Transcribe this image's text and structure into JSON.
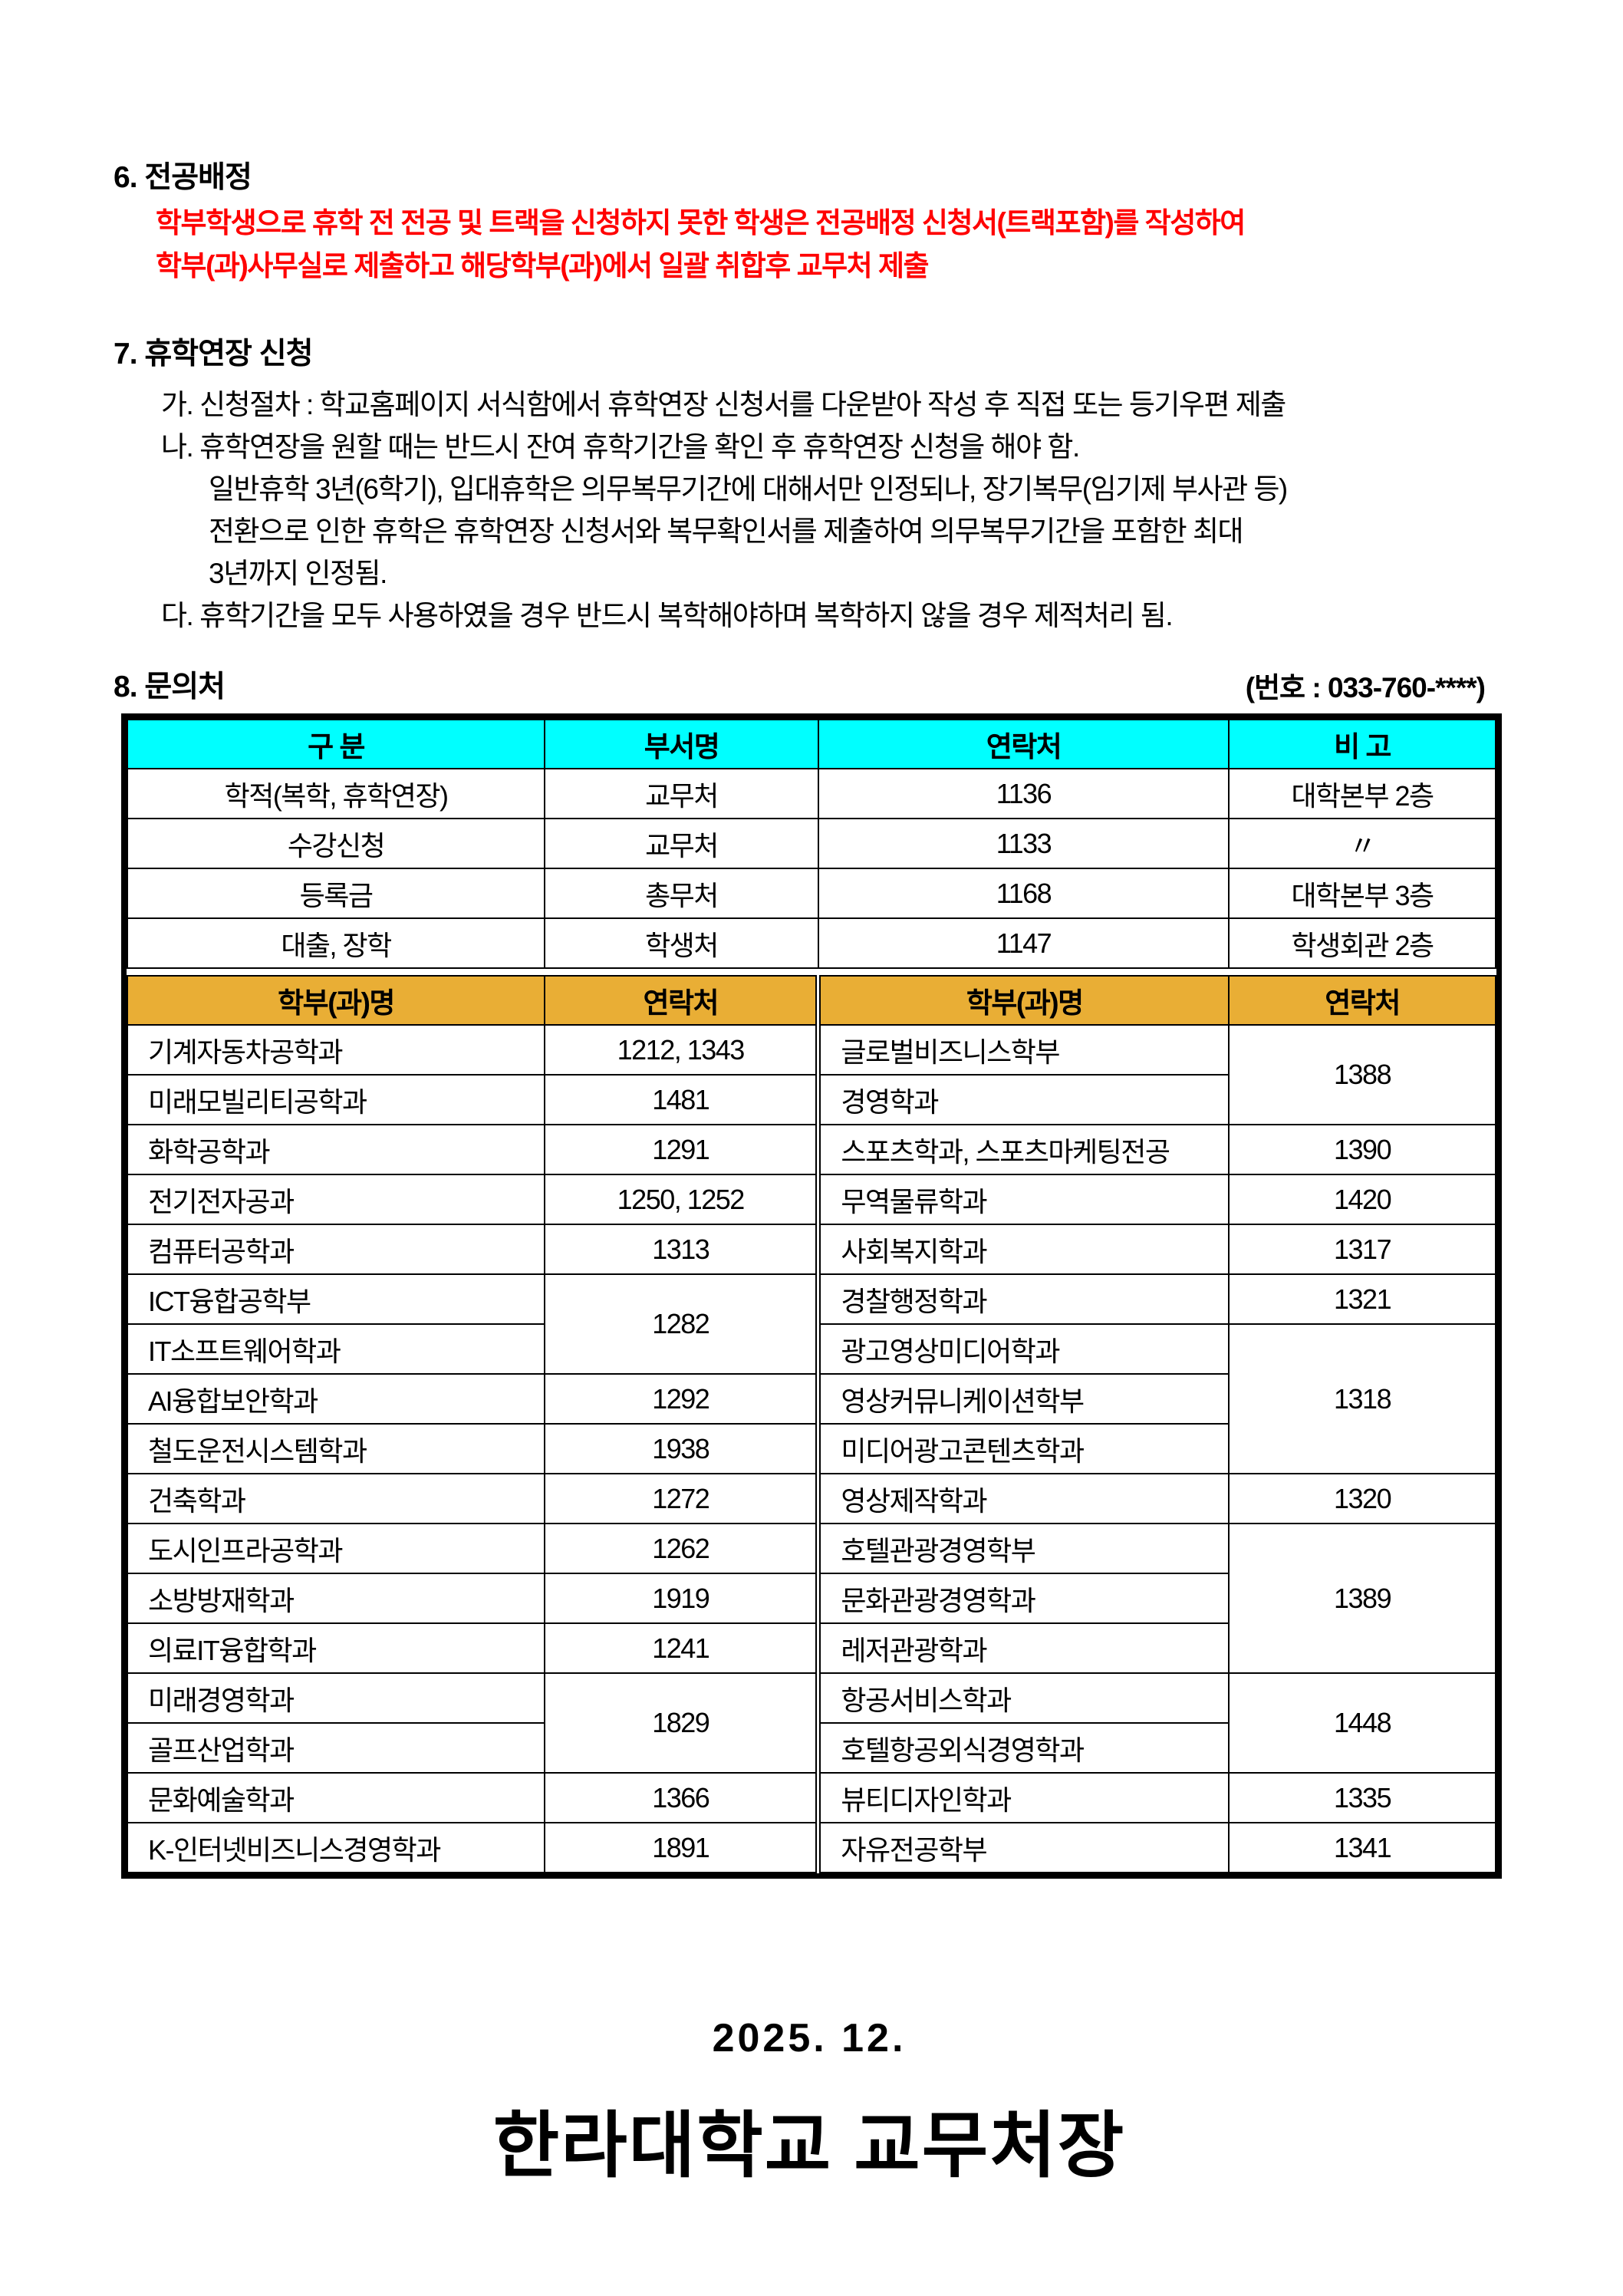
{
  "sections": {
    "major": {
      "heading": "6. 전공배정",
      "lines": [
        "학부학생으로 휴학 전 전공 및 트랙을 신청하지 못한 학생은 전공배정 신청서(트랙포함)를 작성하여",
        "학부(과)사무실로 제출하고 해당학부(과)에서 일괄 취합후 교무처 제출"
      ]
    },
    "extension": {
      "heading": "7. 휴학연장 신청",
      "items": [
        "가. 신청절차 : 학교홈페이지 서식함에서 휴학연장 신청서를 다운받아 작성 후 직접 또는 등기우편 제출",
        "나. 휴학연장을 원할 때는 반드시 잔여 휴학기간을 확인 후 휴학연장 신청을 해야 함.",
        "일반휴학 3년(6학기), 입대휴학은 의무복무기간에 대해서만 인정되나, 장기복무(임기제 부사관 등)",
        "전환으로 인한 휴학은 휴학연장 신청서와 복무확인서를 제출하여 의무복무기간을 포함한 최대",
        "3년까지 인정됨.",
        "다. 휴학기간을 모두 사용하였을 경우 반드시 복학해야하며 복학하지 않을 경우 제적처리 됨."
      ]
    },
    "contact": {
      "heading": "8. 문의처",
      "phone_note": "(번호 : 033-760-****)"
    }
  },
  "office_table": {
    "headers": [
      "구 분",
      "부서명",
      "연락처",
      "비 고"
    ],
    "rows": [
      [
        "학적(복학, 휴학연장)",
        "교무처",
        "1136",
        "대학본부 2층"
      ],
      [
        "수강신청",
        "교무처",
        "1133",
        "〃"
      ],
      [
        "등록금",
        "총무처",
        "1168",
        "대학본부 3층"
      ],
      [
        "대출, 장학",
        "학생처",
        "1147",
        "학생회관 2층"
      ]
    ]
  },
  "dept_table": {
    "headers": [
      "학부(과)명",
      "연락처",
      "학부(과)명",
      "연락처"
    ],
    "rows": [
      {
        "l_name": "기계자동차공학과",
        "l_contact": "1212, 1343",
        "r_name": "글로벌비즈니스학부",
        "r_contact": "1388"
      },
      {
        "l_name": "미래모빌리티공학과",
        "l_contact": "1481",
        "r_name": "경영학과"
      },
      {
        "l_name": "화학공학과",
        "l_contact": "1291",
        "r_name": "스포츠학과, 스포츠마케팅전공",
        "r_contact": "1390"
      },
      {
        "l_name": "전기전자공과",
        "l_contact": "1250, 1252",
        "r_name": "무역물류학과",
        "r_contact": "1420"
      },
      {
        "l_name": "컴퓨터공학과",
        "l_contact": "1313",
        "r_name": "사회복지학과",
        "r_contact": "1317"
      },
      {
        "l_name": "ICT융합공학부",
        "l_contact": "1282",
        "r_name": "경찰행정학과",
        "r_contact": "1321"
      },
      {
        "l_name": "IT소프트웨어학과",
        "r_name": "광고영상미디어학과",
        "r_contact": "1318"
      },
      {
        "l_name": "AI융합보안학과",
        "l_contact": "1292",
        "r_name": "영상커뮤니케이션학부"
      },
      {
        "l_name": "철도운전시스템학과",
        "l_contact": "1938",
        "r_name": "미디어광고콘텐츠학과"
      },
      {
        "l_name": "건축학과",
        "l_contact": "1272",
        "r_name": "영상제작학과",
        "r_contact": "1320"
      },
      {
        "l_name": "도시인프라공학과",
        "l_contact": "1262",
        "r_name": "호텔관광경영학부",
        "r_contact": "1389"
      },
      {
        "l_name": "소방방재학과",
        "l_contact": "1919",
        "r_name": "문화관광경영학과"
      },
      {
        "l_name": "의료IT융합학과",
        "l_contact": "1241",
        "r_name": "레저관광학과"
      },
      {
        "l_name": "미래경영학과",
        "l_contact": "1829",
        "r_name": "항공서비스학과",
        "r_contact": "1448"
      },
      {
        "l_name": "골프산업학과",
        "r_name": "호텔항공외식경영학과"
      },
      {
        "l_name": "문화예술학과",
        "l_contact": "1366",
        "r_name": "뷰티디자인학과",
        "r_contact": "1335"
      },
      {
        "l_name": "K-인터넷비즈니스경영학과",
        "l_contact": "1891",
        "r_name": "자유전공학부",
        "r_contact": "1341"
      }
    ]
  },
  "footer": {
    "date": "2025. 12.",
    "signature": "한라대학교 교무처장"
  },
  "colors": {
    "office_header": "#00FFFF",
    "dept_header": "#E9AE35",
    "alert_text": "#FF0000"
  }
}
